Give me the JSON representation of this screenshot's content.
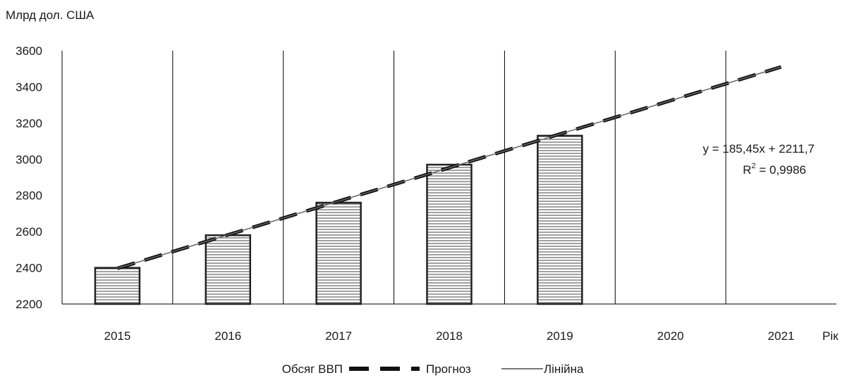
{
  "chart_data": {
    "type": "bar",
    "ylabel": "Млрд дол. США",
    "xlabel": "Рік",
    "categories": [
      "2015",
      "2016",
      "2017",
      "2018",
      "2019",
      "2020",
      "2021"
    ],
    "ylim": [
      2200,
      3600
    ],
    "yticks": [
      "2200",
      "2400",
      "2600",
      "2800",
      "3000",
      "3200",
      "3400",
      "3600"
    ],
    "series": [
      {
        "name": "Обсяг ВВП",
        "kind": "bar",
        "values": [
          2400,
          2580,
          2760,
          2970,
          3130,
          null,
          null
        ]
      },
      {
        "name": "Прогноз",
        "kind": "line-dashed",
        "values": [
          2397,
          2582,
          2768,
          2953,
          3139,
          3324,
          3510
        ]
      },
      {
        "name": "Лінійна",
        "kind": "line",
        "values": [
          2397,
          2582,
          2768,
          2953,
          3139,
          3324,
          3510
        ]
      }
    ],
    "trendline": {
      "equation": "y = 185,45x + 2211,7",
      "r2_label": "R",
      "r2_exp": "2",
      "r2_value": " = 0,9986"
    },
    "legend_position": "bottom-center",
    "grid": "vertical"
  }
}
